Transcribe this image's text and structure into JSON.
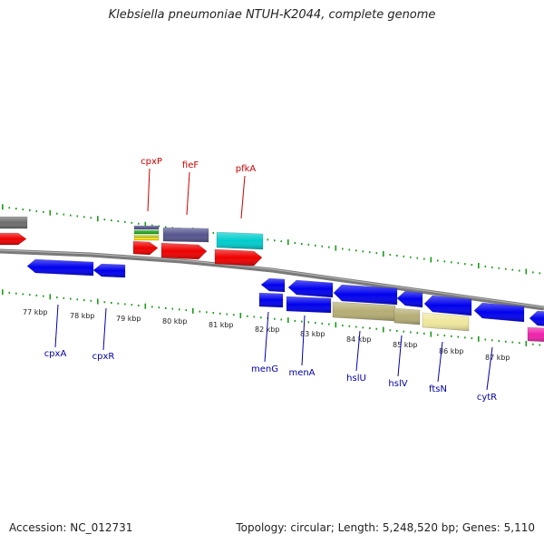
{
  "title": "Klebsiella pneumoniae NTUH-K2044, complete genome",
  "footer": {
    "accession": "Accession: NC_012731",
    "topology": "Topology: circular; Length: 5,248,520 bp; Genes: 5,110"
  },
  "scale": {
    "ticks": [
      "77 kbp",
      "78 kbp",
      "79 kbp",
      "80 kbp",
      "81 kbp",
      "82 kbp",
      "83 kbp",
      "84 kbp",
      "85 kbp",
      "86 kbp",
      "87 kbp"
    ]
  },
  "gene_labels": {
    "top": [
      "cpxP",
      "fieF",
      "pfkA"
    ],
    "bottom": [
      "cpxA",
      "cpxR",
      "menG",
      "menA",
      "hslU",
      "hslV",
      "ftsN",
      "cytR"
    ]
  },
  "colors": {
    "top_label": "#cc0000",
    "bottom_label": "#0000aa",
    "red_feature": "#ee0000",
    "blue_feature": "#0000ee",
    "cyan_feature": "#00cccc",
    "purple_feature": "#55558f",
    "khaki_feature": "#b5ad74",
    "pale_yellow_feature": "#efe79d",
    "magenta_feature": "#ee22aa",
    "gray_feature": "#6e6e6e",
    "backbone": "#7a7a7a",
    "tick_green": "#1a9a1a"
  }
}
